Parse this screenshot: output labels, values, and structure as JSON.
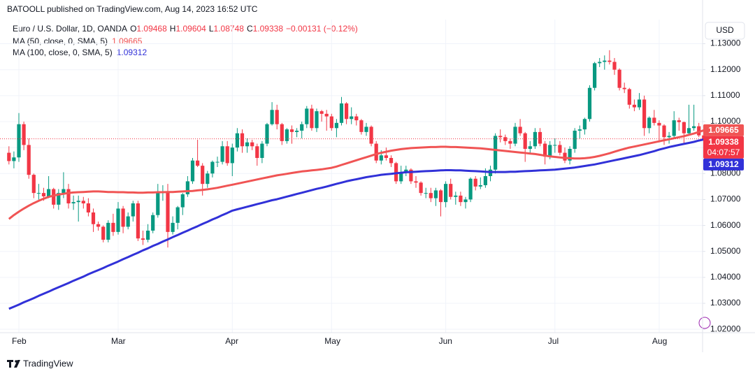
{
  "header": {
    "attribution": "BATOOLL published on TradingView.com, Aug 14, 2023 16:52 UTC",
    "brand": "TradingView",
    "currency": "USD"
  },
  "chart_data": {
    "type": "candlestick",
    "title": "Euro / U.S. Dollar, 1D, OANDA",
    "ohlc_labels": [
      "O",
      "H",
      "L",
      "C"
    ],
    "change_label": "−0.00131 (−0.12%)",
    "countdown": "04:07:57",
    "up_color": "#089981",
    "down_color": "#f23645",
    "grid": true,
    "ylim": [
      1.0187,
      1.1393
    ],
    "yticks": [
      {
        "value": 1.02,
        "label": "1.02000"
      },
      {
        "value": 1.03,
        "label": "1.03000"
      },
      {
        "value": 1.04,
        "label": "1.04000"
      },
      {
        "value": 1.05,
        "label": "1.05000"
      },
      {
        "value": 1.06,
        "label": "1.06000"
      },
      {
        "value": 1.07,
        "label": "1.07000"
      },
      {
        "value": 1.08,
        "label": "1.08000"
      },
      {
        "value": 1.09,
        "label": "1.09000"
      },
      {
        "value": 1.1,
        "label": "1.10000"
      },
      {
        "value": 1.11,
        "label": "1.11000"
      },
      {
        "value": 1.12,
        "label": "1.12000"
      },
      {
        "value": 1.13,
        "label": "1.13000"
      }
    ],
    "categories": [
      null,
      null,
      "Feb",
      null,
      null,
      null,
      null,
      null,
      null,
      null,
      null,
      null,
      null,
      null,
      null,
      null,
      null,
      null,
      null,
      null,
      null,
      null,
      "Mar",
      null,
      null,
      null,
      null,
      null,
      null,
      null,
      null,
      null,
      null,
      null,
      null,
      null,
      null,
      null,
      null,
      null,
      null,
      null,
      null,
      null,
      null,
      "Apr",
      null,
      null,
      null,
      null,
      null,
      null,
      null,
      null,
      null,
      null,
      null,
      null,
      null,
      null,
      null,
      null,
      null,
      null,
      null,
      "May",
      null,
      null,
      null,
      null,
      null,
      null,
      null,
      null,
      null,
      null,
      null,
      null,
      null,
      null,
      null,
      null,
      null,
      null,
      null,
      null,
      null,
      null,
      "Jun",
      null,
      null,
      null,
      null,
      null,
      null,
      null,
      null,
      null,
      null,
      null,
      null,
      null,
      null,
      null,
      null,
      null,
      null,
      null,
      null,
      null,
      "Jul",
      null,
      null,
      null,
      null,
      null,
      null,
      null,
      null,
      null,
      null,
      null,
      null,
      null,
      null,
      null,
      null,
      null,
      null,
      null,
      null,
      "Aug",
      null,
      null,
      null,
      null,
      null,
      null,
      null,
      null,
      null
    ],
    "candles": [
      [
        1.088,
        1.0905,
        1.0835,
        1.0848
      ],
      [
        1.0848,
        1.0885,
        1.082,
        1.0862
      ],
      [
        1.0862,
        1.1033,
        1.0845,
        1.099
      ],
      [
        1.099,
        1.1,
        1.089,
        1.091
      ],
      [
        1.091,
        1.0935,
        1.078,
        1.0795
      ],
      [
        1.0795,
        1.08,
        1.0705,
        1.0725
      ],
      [
        1.0725,
        1.076,
        1.07,
        1.0725
      ],
      [
        1.0725,
        1.0745,
        1.0695,
        1.0712
      ],
      [
        1.0712,
        1.079,
        1.0705,
        1.074
      ],
      [
        1.074,
        1.0745,
        1.0665,
        1.068
      ],
      [
        1.068,
        1.074,
        1.066,
        1.0725
      ],
      [
        1.0725,
        1.0805,
        1.0705,
        1.074
      ],
      [
        1.074,
        1.076,
        1.0665,
        1.0685
      ],
      [
        1.0685,
        1.0715,
        1.066,
        1.069
      ],
      [
        1.069,
        1.0715,
        1.0615,
        1.0695
      ],
      [
        1.0695,
        1.071,
        1.0665,
        1.0685
      ],
      [
        1.0685,
        1.0705,
        1.0635,
        1.065
      ],
      [
        1.065,
        1.0665,
        1.0575,
        1.0605
      ],
      [
        1.0605,
        1.0615,
        1.058,
        1.0595
      ],
      [
        1.0595,
        1.06,
        1.0535,
        1.0545
      ],
      [
        1.0545,
        1.062,
        1.0535,
        1.061
      ],
      [
        1.061,
        1.0645,
        1.056,
        1.0575
      ],
      [
        1.0575,
        1.069,
        1.0565,
        1.0665
      ],
      [
        1.0665,
        1.0675,
        1.057,
        1.0595
      ],
      [
        1.0595,
        1.065,
        1.0585,
        1.0635
      ],
      [
        1.0635,
        1.0695,
        1.0615,
        1.0685
      ],
      [
        1.0685,
        1.0695,
        1.054,
        1.055
      ],
      [
        1.055,
        1.058,
        1.0525,
        1.0545
      ],
      [
        1.0545,
        1.0605,
        1.0535,
        1.058
      ],
      [
        1.058,
        1.065,
        1.057,
        1.064
      ],
      [
        1.064,
        1.076,
        1.063,
        1.073
      ],
      [
        1.073,
        1.0755,
        1.0695,
        1.073
      ],
      [
        1.073,
        1.076,
        1.0515,
        1.0575
      ],
      [
        1.0575,
        1.0635,
        1.0565,
        1.061
      ],
      [
        1.061,
        1.0675,
        1.0585,
        1.067
      ],
      [
        1.067,
        1.0725,
        1.064,
        1.072
      ],
      [
        1.072,
        1.079,
        1.071,
        1.077
      ],
      [
        1.077,
        1.086,
        1.076,
        1.085
      ],
      [
        1.085,
        1.093,
        1.0825,
        1.083
      ],
      [
        1.083,
        1.084,
        1.0715,
        1.076
      ],
      [
        1.076,
        1.081,
        1.0745,
        1.08
      ],
      [
        1.08,
        1.085,
        1.0785,
        1.0845
      ],
      [
        1.0845,
        1.0865,
        1.0825,
        1.0845
      ],
      [
        1.0845,
        1.0925,
        1.0835,
        1.0905
      ],
      [
        1.0905,
        1.0925,
        1.083,
        1.084
      ],
      [
        1.084,
        1.0915,
        1.079,
        1.09
      ],
      [
        1.09,
        1.0975,
        1.0885,
        1.0955
      ],
      [
        1.0955,
        1.097,
        1.088,
        1.0905
      ],
      [
        1.0905,
        1.0935,
        1.088,
        1.092
      ],
      [
        1.092,
        1.093,
        1.089,
        1.0905
      ],
      [
        1.0905,
        1.0915,
        1.083,
        1.086
      ],
      [
        1.086,
        1.0925,
        1.084,
        1.0915
      ],
      [
        1.0915,
        1.0995,
        1.0905,
        1.099
      ],
      [
        1.099,
        1.1075,
        1.0985,
        1.1045
      ],
      [
        1.1045,
        1.1065,
        1.097,
        1.099
      ],
      [
        1.099,
        1.0995,
        1.091,
        1.0925
      ],
      [
        1.0925,
        1.0975,
        1.0915,
        1.097
      ],
      [
        1.097,
        1.0985,
        1.0915,
        1.096
      ],
      [
        1.096,
        1.0975,
        1.094,
        1.0965
      ],
      [
        1.0965,
        1.1,
        1.0935,
        1.099
      ],
      [
        1.099,
        1.106,
        1.0975,
        1.105
      ],
      [
        1.105,
        1.1065,
        1.0965,
        1.0975
      ],
      [
        1.0975,
        1.105,
        1.096,
        1.104
      ],
      [
        1.104,
        1.1045,
        1.1,
        1.103
      ],
      [
        1.103,
        1.1045,
        1.0965,
        1.102
      ],
      [
        1.102,
        1.103,
        1.0965,
        1.0975
      ],
      [
        1.0975,
        1.101,
        1.094,
        1.0995
      ],
      [
        1.0995,
        1.1095,
        1.0985,
        1.107
      ],
      [
        1.107,
        1.1075,
        1.099,
        1.101
      ],
      [
        1.101,
        1.1055,
        1.099,
        1.102
      ],
      [
        1.102,
        1.103,
        1.0985,
        1.1005
      ],
      [
        1.1005,
        1.101,
        1.095,
        1.096
      ],
      [
        1.096,
        1.0995,
        1.0945,
        1.098
      ],
      [
        1.098,
        1.0985,
        1.0905,
        1.0915
      ],
      [
        1.0915,
        1.0925,
        1.084,
        1.085
      ],
      [
        1.085,
        1.089,
        1.0835,
        1.087
      ],
      [
        1.087,
        1.09,
        1.085,
        1.086
      ],
      [
        1.086,
        1.087,
        1.0825,
        1.084
      ],
      [
        1.084,
        1.0845,
        1.076,
        1.077
      ],
      [
        1.077,
        1.083,
        1.076,
        1.0805
      ],
      [
        1.0805,
        1.083,
        1.079,
        1.0815
      ],
      [
        1.0815,
        1.082,
        1.076,
        1.077
      ],
      [
        1.077,
        1.079,
        1.0745,
        1.0765
      ],
      [
        1.0765,
        1.077,
        1.0715,
        1.0725
      ],
      [
        1.0725,
        1.0745,
        1.0705,
        1.0725
      ],
      [
        1.0725,
        1.0745,
        1.069,
        1.0705
      ],
      [
        1.0705,
        1.0745,
        1.0675,
        1.0735
      ],
      [
        1.0735,
        1.074,
        1.0635,
        1.069
      ],
      [
        1.069,
        1.077,
        1.067,
        1.076
      ],
      [
        1.076,
        1.078,
        1.07,
        1.071
      ],
      [
        1.071,
        1.073,
        1.068,
        1.0715
      ],
      [
        1.0715,
        1.073,
        1.0675,
        1.069
      ],
      [
        1.069,
        1.071,
        1.0665,
        1.07
      ],
      [
        1.07,
        1.0785,
        1.069,
        1.078
      ],
      [
        1.078,
        1.079,
        1.0735,
        1.075
      ],
      [
        1.075,
        1.0785,
        1.074,
        1.0755
      ],
      [
        1.0755,
        1.082,
        1.0745,
        1.079
      ],
      [
        1.079,
        1.083,
        1.077,
        1.0815
      ],
      [
        1.0815,
        1.0955,
        1.08,
        1.0945
      ],
      [
        1.0945,
        1.097,
        1.092,
        1.094
      ],
      [
        1.094,
        1.095,
        1.091,
        1.0925
      ],
      [
        1.0925,
        1.0935,
        1.0895,
        1.0915
      ],
      [
        1.0915,
        1.0995,
        1.0905,
        1.098
      ],
      [
        1.098,
        1.101,
        1.0945,
        1.0955
      ],
      [
        1.0955,
        1.096,
        1.0845,
        1.0895
      ],
      [
        1.0895,
        1.0925,
        1.0875,
        1.0905
      ],
      [
        1.0905,
        1.0975,
        1.0895,
        1.096
      ],
      [
        1.096,
        1.0975,
        1.0905,
        1.0915
      ],
      [
        1.0915,
        1.0925,
        1.0835,
        1.0865
      ],
      [
        1.0865,
        1.0925,
        1.0855,
        1.091
      ],
      [
        1.091,
        1.0935,
        1.088,
        1.091
      ],
      [
        1.091,
        1.0925,
        1.087,
        1.088
      ],
      [
        1.088,
        1.09,
        1.084,
        1.085
      ],
      [
        1.085,
        1.0905,
        1.0835,
        1.0895
      ],
      [
        1.0895,
        1.0975,
        1.088,
        1.0965
      ],
      [
        1.0965,
        1.0985,
        1.0935,
        1.097
      ],
      [
        1.097,
        1.1015,
        1.095,
        1.101
      ],
      [
        1.101,
        1.114,
        1.1,
        1.113
      ],
      [
        1.113,
        1.123,
        1.112,
        1.1225
      ],
      [
        1.1225,
        1.1245,
        1.121,
        1.123
      ],
      [
        1.123,
        1.1255,
        1.12,
        1.1235
      ],
      [
        1.1235,
        1.1275,
        1.122,
        1.123
      ],
      [
        1.123,
        1.1245,
        1.118,
        1.12
      ],
      [
        1.12,
        1.1205,
        1.112,
        1.113
      ],
      [
        1.113,
        1.115,
        1.111,
        1.1125
      ],
      [
        1.1125,
        1.113,
        1.105,
        1.1065
      ],
      [
        1.1065,
        1.1085,
        1.104,
        1.1055
      ],
      [
        1.1055,
        1.111,
        1.1045,
        1.1085
      ],
      [
        1.1085,
        1.11,
        1.0945,
        1.0975
      ],
      [
        1.0975,
        1.102,
        1.0955,
        1.1015
      ],
      [
        1.1015,
        1.1045,
        1.0985,
        1.0995
      ],
      [
        1.0995,
        1.1005,
        1.092,
        1.0985
      ],
      [
        1.0985,
        1.099,
        1.091,
        1.094
      ],
      [
        1.094,
        1.096,
        1.0915,
        1.0945
      ],
      [
        1.0945,
        1.104,
        1.0935,
        1.1005
      ],
      [
        1.1005,
        1.1015,
        1.0965,
        1.0998
      ],
      [
        1.0998,
        1.1,
        1.0915,
        1.0955
      ],
      [
        1.0955,
        1.1065,
        1.0945,
        1.0975
      ],
      [
        1.0975,
        1.1065,
        1.0965,
        1.0982
      ],
      [
        1.0982,
        1.0995,
        1.094,
        1.0947
      ],
      [
        1.09468,
        1.09604,
        1.08748,
        1.09338
      ]
    ],
    "series": [
      {
        "name": "MA (50, close, 0, SMA, 5)",
        "color": "#f05454",
        "values": [
          1.0625,
          1.064,
          1.0653,
          1.0665,
          1.0676,
          1.0686,
          1.0695,
          1.0703,
          1.071,
          1.0715,
          1.0719,
          1.0722,
          1.0725,
          1.0727,
          1.0728,
          1.0729,
          1.073,
          1.0731,
          1.0731,
          1.073,
          1.0729,
          1.0729,
          1.0728,
          1.0728,
          1.0727,
          1.0727,
          1.0726,
          1.0726,
          1.0727,
          1.0727,
          1.0728,
          1.0728,
          1.0729,
          1.0729,
          1.073,
          1.0731,
          1.0732,
          1.0733,
          1.0735,
          1.0737,
          1.0739,
          1.0742,
          1.0745,
          1.0749,
          1.0753,
          1.0757,
          1.0761,
          1.0765,
          1.0769,
          1.0773,
          1.0777,
          1.0781,
          1.0785,
          1.0789,
          1.0793,
          1.0796,
          1.0799,
          1.0802,
          1.0805,
          1.0808,
          1.081,
          1.0812,
          1.0814,
          1.0816,
          1.0819,
          1.0822,
          1.0827,
          1.0833,
          1.0839,
          1.0845,
          1.0851,
          1.0857,
          1.0863,
          1.0869,
          1.0875,
          1.088,
          1.0884,
          1.0888,
          1.0891,
          1.0894,
          1.0896,
          1.0898,
          1.0899,
          1.09,
          1.0901,
          1.0902,
          1.0902,
          1.0903,
          1.0903,
          1.0902,
          1.0902,
          1.0901,
          1.09,
          1.0899,
          1.0898,
          1.0897,
          1.0895,
          1.0893,
          1.0891,
          1.0889,
          1.0887,
          1.0885,
          1.0883,
          1.0881,
          1.0879,
          1.0877,
          1.0875,
          1.0872,
          1.0869,
          1.0866,
          1.0864,
          1.0862,
          1.086,
          1.0859,
          1.0858,
          1.0858,
          1.0859,
          1.0861,
          1.0864,
          1.0868,
          1.0873,
          1.0878,
          1.0884,
          1.089,
          1.0895,
          1.09,
          1.0904,
          1.0908,
          1.0912,
          1.0916,
          1.092,
          1.0924,
          1.0928,
          1.0932,
          1.0936,
          1.094,
          1.0944,
          1.0949,
          1.0954,
          1.096,
          1.09665
        ]
      },
      {
        "name": "MA (100, close, 0, SMA, 5)",
        "color": "#3131d8",
        "values": [
          1.0279,
          1.0287,
          1.0295,
          1.0304,
          1.0312,
          1.032,
          1.0329,
          1.0337,
          1.0345,
          1.0354,
          1.0362,
          1.037,
          1.0378,
          1.0387,
          1.0395,
          1.0403,
          1.0412,
          1.042,
          1.0428,
          1.0436,
          1.0445,
          1.0453,
          1.0461,
          1.047,
          1.0478,
          1.0487,
          1.0495,
          1.0504,
          1.0512,
          1.0521,
          1.0529,
          1.0538,
          1.0546,
          1.0555,
          1.0563,
          1.0572,
          1.058,
          1.0589,
          1.0597,
          1.0606,
          1.0614,
          1.0623,
          1.0631,
          1.064,
          1.0648,
          1.0657,
          1.0662,
          1.0667,
          1.0672,
          1.0677,
          1.0682,
          1.0687,
          1.0692,
          1.0697,
          1.0701,
          1.0706,
          1.0711,
          1.0716,
          1.0721,
          1.0726,
          1.0731,
          1.0736,
          1.0741,
          1.0745,
          1.075,
          1.0755,
          1.076,
          1.0765,
          1.077,
          1.0774,
          1.0778,
          1.0782,
          1.0786,
          1.0789,
          1.0792,
          1.0795,
          1.0797,
          1.0799,
          1.0801,
          1.0803,
          1.0805,
          1.0806,
          1.0807,
          1.0808,
          1.0809,
          1.081,
          1.0811,
          1.0812,
          1.0813,
          1.0813,
          1.0812,
          1.0812,
          1.0811,
          1.081,
          1.0809,
          1.0808,
          1.0807,
          1.0806,
          1.0806,
          1.0806,
          1.0806,
          1.0807,
          1.0807,
          1.0808,
          1.0809,
          1.081,
          1.0811,
          1.0812,
          1.0813,
          1.0814,
          1.0815,
          1.0817,
          1.0819,
          1.0821,
          1.0823,
          1.0826,
          1.0829,
          1.0832,
          1.0835,
          1.0839,
          1.0843,
          1.0847,
          1.0851,
          1.0855,
          1.0859,
          1.0863,
          1.0867,
          1.0871,
          1.0876,
          1.0881,
          1.0886,
          1.0892,
          1.0897,
          1.0902,
          1.0906,
          1.091,
          1.0914,
          1.0918,
          1.0922,
          1.0927,
          1.09312
        ]
      }
    ]
  }
}
